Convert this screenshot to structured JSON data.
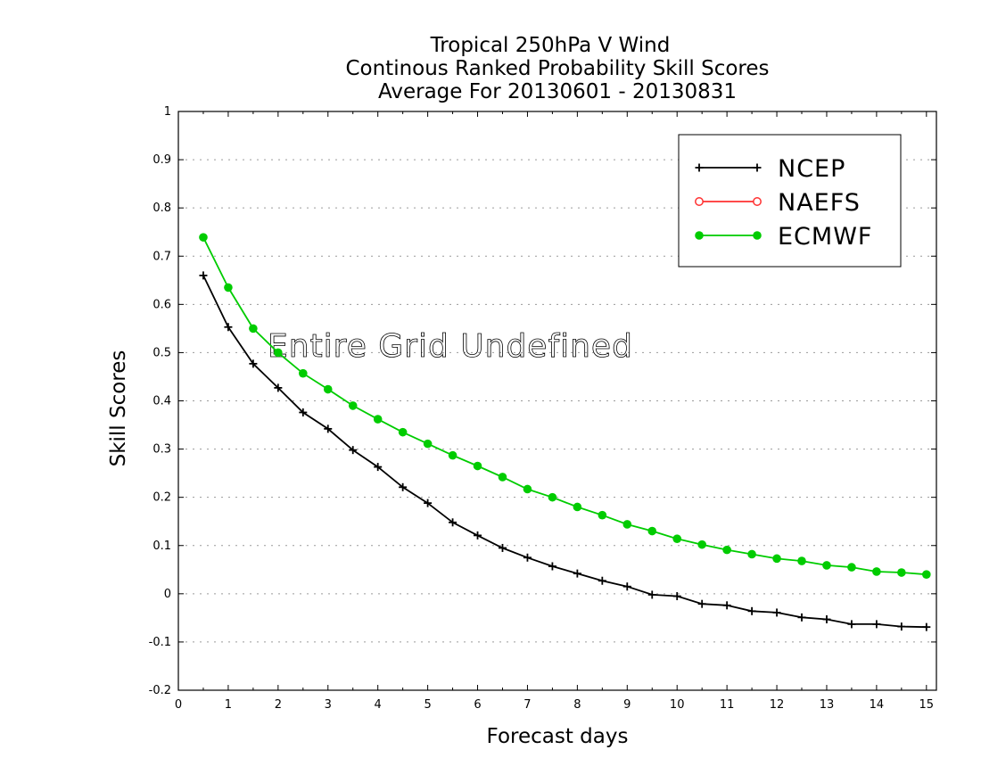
{
  "chart_data": {
    "type": "line",
    "title": [
      "Tropical 250hPa V Wind",
      "Continous Ranked Probability Skill Scores",
      "Average For 20130601 - 20130831"
    ],
    "xlabel": "Forecast days",
    "ylabel": "Skill Scores",
    "xlim": [
      0,
      15.2
    ],
    "ylim": [
      -0.2,
      1
    ],
    "xticks": [
      "0",
      "1",
      "2",
      "3",
      "4",
      "5",
      "6",
      "7",
      "8",
      "9",
      "10",
      "11",
      "12",
      "13",
      "14",
      "15"
    ],
    "yticks": [
      "-0.2",
      "-0.1",
      "0",
      "0.1",
      "0.2",
      "0.3",
      "0.4",
      "0.5",
      "0.6",
      "0.7",
      "0.8",
      "0.9",
      "1"
    ],
    "grid": "horizontal dotted",
    "legend_position": "top-right",
    "annotation": "Entire Grid Undefined",
    "series": [
      {
        "name": "NCEP",
        "color": "#000000",
        "marker": "plus",
        "x": [
          0.5,
          1,
          1.5,
          2,
          2.5,
          3,
          3.5,
          4,
          4.5,
          5,
          5.5,
          6,
          6.5,
          7,
          7.5,
          8,
          8.5,
          9,
          9.5,
          10,
          10.5,
          11,
          11.5,
          12,
          12.5,
          13,
          13.5,
          14,
          14.5,
          15
        ],
        "values": [
          0.66,
          0.553,
          0.477,
          0.427,
          0.376,
          0.342,
          0.298,
          0.263,
          0.221,
          0.188,
          0.148,
          0.121,
          0.095,
          0.075,
          0.057,
          0.042,
          0.027,
          0.015,
          -0.002,
          -0.005,
          -0.021,
          -0.024,
          -0.036,
          -0.039,
          -0.049,
          -0.053,
          -0.063,
          -0.063,
          -0.068,
          -0.069
        ]
      },
      {
        "name": "NAEFS",
        "color": "#ff3030",
        "marker": "open-circle",
        "x": [],
        "values": []
      },
      {
        "name": "ECMWF",
        "color": "#00cc00",
        "marker": "filled-circle",
        "x": [
          0.5,
          1,
          1.5,
          2,
          2.5,
          3,
          3.5,
          4,
          4.5,
          5,
          5.5,
          6,
          6.5,
          7,
          7.5,
          8,
          8.5,
          9,
          9.5,
          10,
          10.5,
          11,
          11.5,
          12,
          12.5,
          13,
          13.5,
          14,
          14.5,
          15
        ],
        "values": [
          0.739,
          0.635,
          0.55,
          0.5,
          0.457,
          0.424,
          0.39,
          0.362,
          0.335,
          0.311,
          0.287,
          0.265,
          0.242,
          0.217,
          0.2,
          0.18,
          0.163,
          0.144,
          0.13,
          0.114,
          0.102,
          0.091,
          0.082,
          0.073,
          0.068,
          0.059,
          0.055,
          0.046,
          0.044,
          0.04
        ]
      }
    ]
  }
}
